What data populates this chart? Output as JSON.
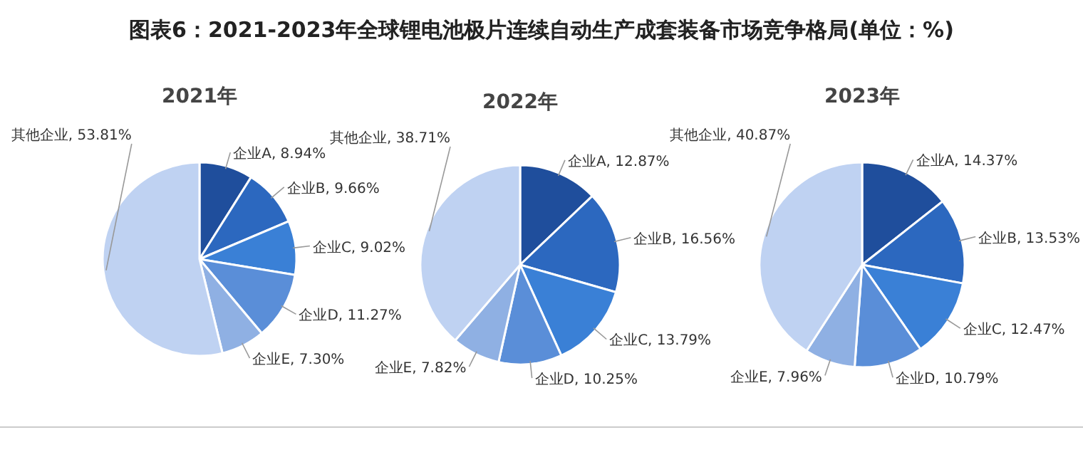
{
  "chart_data": [
    {
      "type": "pie",
      "title": "图表6：2021-2023年全球锂电池极片连续自动生产成套装备市场竞争格局(单位：%)",
      "subtitle": "2021年",
      "categories": [
        "企业A",
        "企业B",
        "企业C",
        "企业D",
        "企业E",
        "其他企业"
      ],
      "values": [
        8.94,
        9.66,
        9.02,
        11.27,
        7.3,
        53.81
      ],
      "value_labels": [
        "8.94%",
        "9.66%",
        "9.02%",
        "11.27%",
        "7.30%",
        "53.81%"
      ],
      "colors": [
        "#1f4e9c",
        "#2c68bf",
        "#3a80d6",
        "#5a8ed8",
        "#8fb0e3",
        "#bfd2f2"
      ]
    },
    {
      "type": "pie",
      "subtitle": "2022年",
      "categories": [
        "企业A",
        "企业B",
        "企业C",
        "企业D",
        "企业E",
        "其他企业"
      ],
      "values": [
        12.87,
        16.56,
        13.79,
        10.25,
        7.82,
        38.71
      ],
      "value_labels": [
        "12.87%",
        "16.56%",
        "13.79%",
        "10.25%",
        "7.82%",
        "38.71%"
      ],
      "colors": [
        "#1f4e9c",
        "#2c68bf",
        "#3a80d6",
        "#5a8ed8",
        "#8fb0e3",
        "#bfd2f2"
      ]
    },
    {
      "type": "pie",
      "subtitle": "2023年",
      "categories": [
        "企业A",
        "企业B",
        "企业C",
        "企业D",
        "企业E",
        "其他企业"
      ],
      "values": [
        14.37,
        13.53,
        12.47,
        10.79,
        7.96,
        40.87
      ],
      "value_labels": [
        "14.37%",
        "13.53%",
        "12.47%",
        "10.79%",
        "7.96%",
        "40.87%"
      ],
      "colors": [
        "#1f4e9c",
        "#2c68bf",
        "#3a80d6",
        "#5a8ed8",
        "#8fb0e3",
        "#bfd2f2"
      ]
    }
  ]
}
